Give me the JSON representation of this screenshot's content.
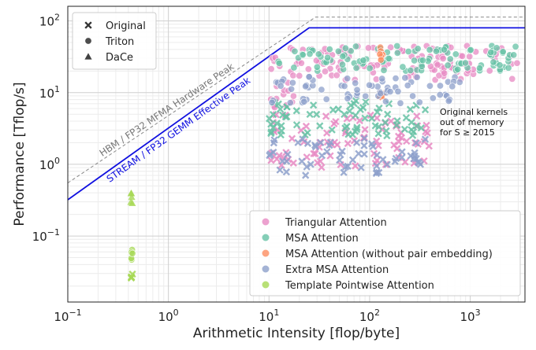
{
  "chart_data": {
    "type": "scatter",
    "xlabel": "Arithmetic Intensity [flop/byte]",
    "ylabel": "Performance [Tflop/s]",
    "xscale": "log",
    "yscale": "log",
    "xlim": [
      0.1,
      3500
    ],
    "ylim": [
      0.012,
      160
    ],
    "x_ticks": [
      {
        "value": 0.1,
        "label": "10^-1",
        "base": "10",
        "exp": "−1"
      },
      {
        "value": 1,
        "label": "10^0",
        "base": "10",
        "exp": "0"
      },
      {
        "value": 10,
        "label": "10^1",
        "base": "10",
        "exp": "1"
      },
      {
        "value": 100,
        "label": "10^2",
        "base": "10",
        "exp": "2"
      },
      {
        "value": 1000,
        "label": "10^3",
        "base": "10",
        "exp": "3"
      }
    ],
    "y_ticks": [
      {
        "value": 0.1,
        "label": "10^-1",
        "base": "10",
        "exp": "−1"
      },
      {
        "value": 1,
        "label": "10^0",
        "base": "10",
        "exp": "0"
      },
      {
        "value": 10,
        "label": "10^1",
        "base": "10",
        "exp": "1"
      },
      {
        "value": 100,
        "label": "10^2",
        "base": "10",
        "exp": "2"
      }
    ],
    "grid": true,
    "legend_markers": {
      "position": "top-left",
      "entries": [
        {
          "label": "Original",
          "marker": "x"
        },
        {
          "label": "Triton",
          "marker": "circle"
        },
        {
          "label": "DaCe",
          "marker": "triangle"
        }
      ]
    },
    "legend_series": {
      "position": "bottom-right"
    },
    "rooflines": [
      {
        "label": "HBM / FP32 MFMA Hardware Peak",
        "color": "#888888",
        "style": "dashed",
        "points": [
          [
            0.1,
            0.55
          ],
          [
            29,
            113
          ],
          [
            3500,
            113
          ]
        ]
      },
      {
        "label": "STREAM / FP32 GEMM Effective Peak",
        "color": "#1010e0",
        "style": "solid",
        "points": [
          [
            0.1,
            0.32
          ],
          [
            25,
            80
          ],
          [
            3500,
            80
          ]
        ]
      }
    ],
    "annotation": {
      "lines": [
        "Original kernels",
        "out of memory",
        "for S ≥ 2015"
      ]
    },
    "series": [
      {
        "name": "Triangular Attention",
        "color": "#e78ac3",
        "clusters": [
          {
            "marker": "circle",
            "x_range": [
              10,
              3000
            ],
            "y_range": [
              15,
              45
            ],
            "n": 130
          },
          {
            "marker": "circle",
            "x_range": [
              10,
              20
            ],
            "y_range": [
              6,
              15
            ],
            "n": 12
          },
          {
            "marker": "x",
            "x_range": [
              10,
              400
            ],
            "y_range": [
              0.9,
              5
            ],
            "n": 80
          }
        ]
      },
      {
        "name": "MSA Attention",
        "color": "#66c2a5",
        "clusters": [
          {
            "marker": "circle",
            "x_range": [
              12,
              3000
            ],
            "y_range": [
              20,
              45
            ],
            "n": 110
          },
          {
            "marker": "x",
            "x_range": [
              10,
              400
            ],
            "y_range": [
              2.5,
              8
            ],
            "n": 70
          }
        ]
      },
      {
        "name": "MSA Attention (without pair embedding)",
        "color": "#fc8d62",
        "clusters": [
          {
            "marker": "circle",
            "x_range": [
              125,
              135
            ],
            "y_range": [
              28,
              45
            ],
            "n": 8
          },
          {
            "marker": "x",
            "x_range": [
              125,
              135
            ],
            "y_range": [
              8,
              10
            ],
            "n": 4
          }
        ]
      },
      {
        "name": "Extra MSA Attention",
        "color": "#8da0cb",
        "clusters": [
          {
            "marker": "circle",
            "x_range": [
              10,
              800
            ],
            "y_range": [
              7,
              17
            ],
            "n": 70
          },
          {
            "marker": "x",
            "x_range": [
              10,
              400
            ],
            "y_range": [
              0.7,
              2.4
            ],
            "n": 60
          }
        ]
      },
      {
        "name": "Template Pointwise Attention",
        "color": "#a6d854",
        "clusters": [
          {
            "marker": "triangle",
            "x_range": [
              0.42,
              0.44
            ],
            "y_range": [
              0.28,
              0.45
            ],
            "n": 5
          },
          {
            "marker": "circle",
            "x_range": [
              0.42,
              0.44
            ],
            "y_range": [
              0.045,
              0.068
            ],
            "n": 5
          },
          {
            "marker": "x",
            "x_range": [
              0.42,
              0.44
            ],
            "y_range": [
              0.024,
              0.031
            ],
            "n": 4
          }
        ]
      }
    ]
  }
}
